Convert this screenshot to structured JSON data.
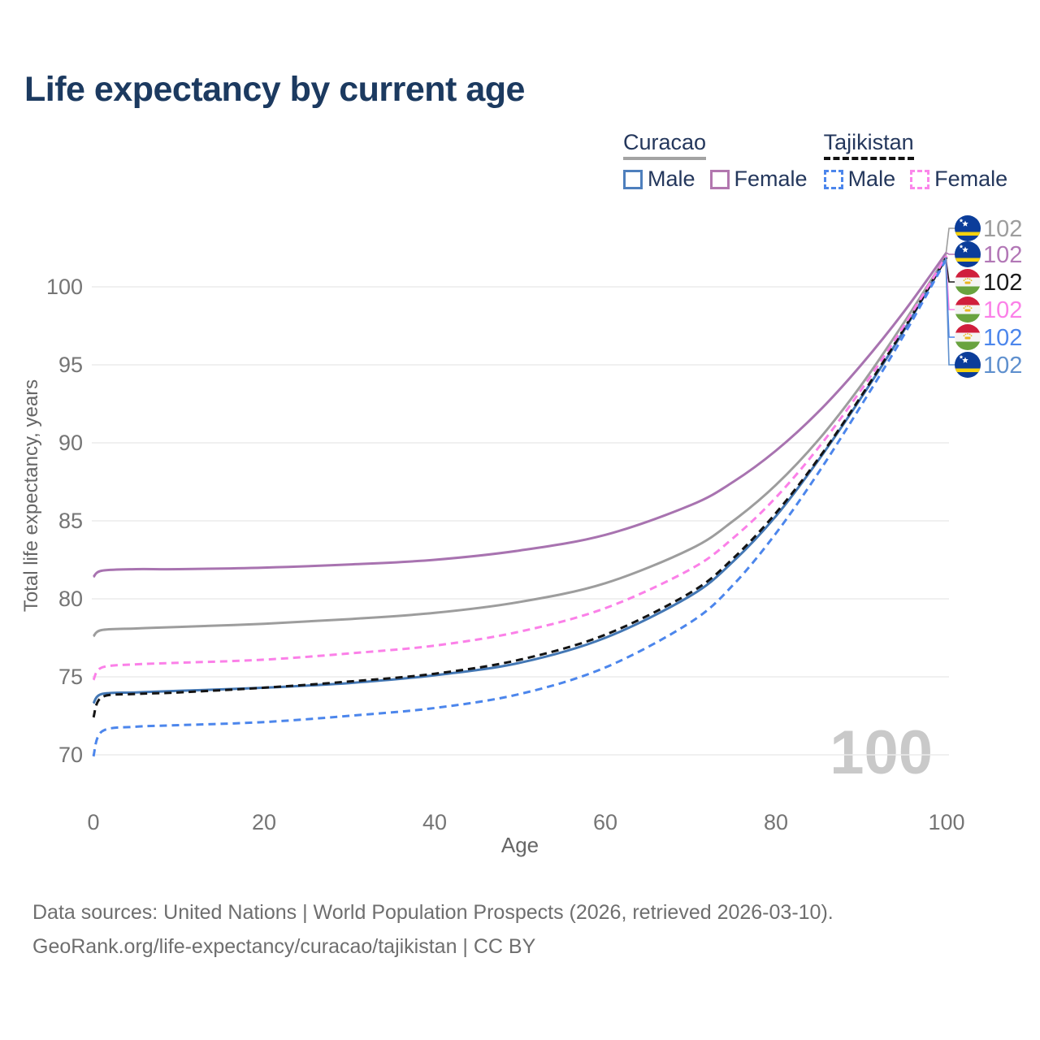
{
  "title": "Life expectancy by current age",
  "watermark": "100",
  "legend": {
    "groups": [
      {
        "country": "Curacao",
        "line_style": "solid",
        "items": [
          {
            "label": "Male",
            "color": "#4e7fbd"
          },
          {
            "label": "Female",
            "color": "#b277af"
          }
        ]
      },
      {
        "country": "Tajikistan",
        "line_style": "dashed",
        "items": [
          {
            "label": "Male",
            "color": "#4c86ec"
          },
          {
            "label": "Female",
            "color": "#fb86ea"
          }
        ]
      }
    ]
  },
  "chart_data": {
    "type": "line",
    "title": "Life expectancy by current age",
    "xlabel": "Age",
    "ylabel": "Total life expectancy, years",
    "xlim": [
      0,
      100
    ],
    "ylim": [
      68.5,
      103.5
    ],
    "x_ticks": [
      0,
      20,
      40,
      60,
      80,
      100
    ],
    "y_ticks": [
      70,
      75,
      80,
      85,
      90,
      95,
      100
    ],
    "grid": "horizontal",
    "legend_position": "top-right",
    "x": [
      0,
      1,
      5,
      10,
      20,
      30,
      40,
      50,
      60,
      70,
      75,
      80,
      85,
      90,
      95,
      100
    ],
    "series": [
      {
        "name": "Curacao",
        "sex": "both",
        "line": "solid",
        "color": "#9d9d9d",
        "flag": "curacao",
        "end_label": "102",
        "label_color": "#9d9d9d",
        "values": [
          77.6,
          78.0,
          78.1,
          78.2,
          78.4,
          78.7,
          79.1,
          79.8,
          81.0,
          83.2,
          85.0,
          87.3,
          90.2,
          93.7,
          97.7,
          102.0
        ]
      },
      {
        "name": "Curacao Female",
        "sex": "female",
        "line": "solid",
        "color": "#a873b0",
        "flag": "curacao",
        "end_label": "102",
        "label_color": "#b277b6",
        "values": [
          81.4,
          81.8,
          81.9,
          81.9,
          82.0,
          82.2,
          82.5,
          83.1,
          84.1,
          86.0,
          87.5,
          89.5,
          92.0,
          95.0,
          98.4,
          102.2
        ]
      },
      {
        "name": "Tajikistan",
        "sex": "both",
        "line": "dashed",
        "color": "#141414",
        "flag": "tajikistan",
        "end_label": "102",
        "label_color": "#1a1a1a",
        "values": [
          72.4,
          73.7,
          73.9,
          74.0,
          74.3,
          74.7,
          75.2,
          76.1,
          77.7,
          80.4,
          82.6,
          85.5,
          89.0,
          93.0,
          97.3,
          101.9
        ]
      },
      {
        "name": "Tajikistan Female",
        "sex": "female",
        "line": "dashed",
        "color": "#fb80e8",
        "flag": "tajikistan",
        "end_label": "102",
        "label_color": "#fb80e8",
        "values": [
          74.8,
          75.6,
          75.8,
          75.9,
          76.1,
          76.5,
          77.0,
          77.9,
          79.4,
          81.9,
          83.9,
          86.5,
          89.7,
          93.4,
          97.5,
          102.0
        ]
      },
      {
        "name": "Tajikistan Male",
        "sex": "male",
        "line": "dashed",
        "color": "#4c86ec",
        "flag": "tajikistan",
        "end_label": "102",
        "label_color": "#4c86ec",
        "values": [
          69.9,
          71.5,
          71.8,
          71.9,
          72.1,
          72.5,
          73.0,
          73.9,
          75.6,
          78.5,
          80.9,
          84.2,
          88.1,
          92.4,
          96.9,
          101.8
        ]
      },
      {
        "name": "Curacao Male",
        "sex": "male",
        "line": "solid",
        "color": "#4377b4",
        "flag": "curacao",
        "end_label": "102",
        "label_color": "#5f90ce",
        "values": [
          73.3,
          73.9,
          74.0,
          74.1,
          74.3,
          74.6,
          75.1,
          75.9,
          77.5,
          80.2,
          82.4,
          85.3,
          88.9,
          92.9,
          97.2,
          101.9
        ]
      }
    ]
  },
  "footer": {
    "line1": "Data sources: United Nations | World Population Prospects (2026, retrieved 2026-03-10).",
    "line2": "GeoRank.org/life-expectancy/curacao/tajikistan | CC BY"
  }
}
